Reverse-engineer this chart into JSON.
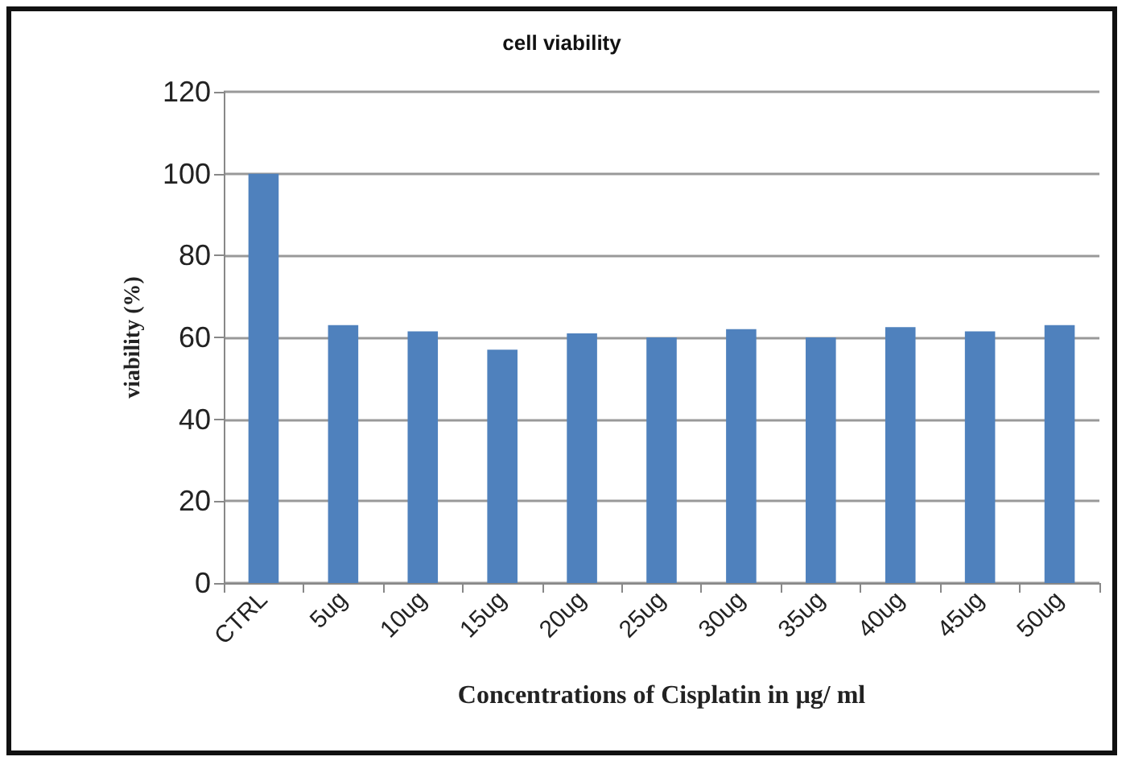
{
  "chart_data": {
    "type": "bar",
    "title": "cell viability",
    "xlabel": "Concentrations of Cisplatin in µg/ ml",
    "ylabel": "viability (%)",
    "categories": [
      "CTRL",
      "5ug",
      "10ug",
      "15ug",
      "20ug",
      "25ug",
      "30ug",
      "35ug",
      "40ug",
      "45ug",
      "50ug"
    ],
    "values": [
      100,
      63,
      61.5,
      57,
      61,
      60,
      62,
      60,
      62.5,
      61.5,
      63
    ],
    "color": "#4f81bd",
    "ylim": [
      0,
      120
    ],
    "yticks": [
      0,
      20,
      40,
      60,
      80,
      100,
      120
    ],
    "grid": "y"
  }
}
